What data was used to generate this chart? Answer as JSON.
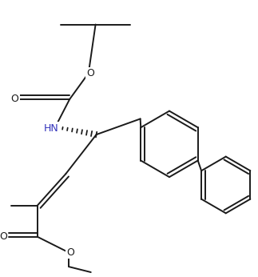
{
  "bg_color": "#ffffff",
  "line_color": "#1a1a1a",
  "hn_color": "#3333bb",
  "lw": 1.4,
  "figsize": [
    3.23,
    3.46
  ],
  "dpi": 100,
  "xlim": [
    0,
    323
  ],
  "ylim": [
    0,
    346
  ]
}
